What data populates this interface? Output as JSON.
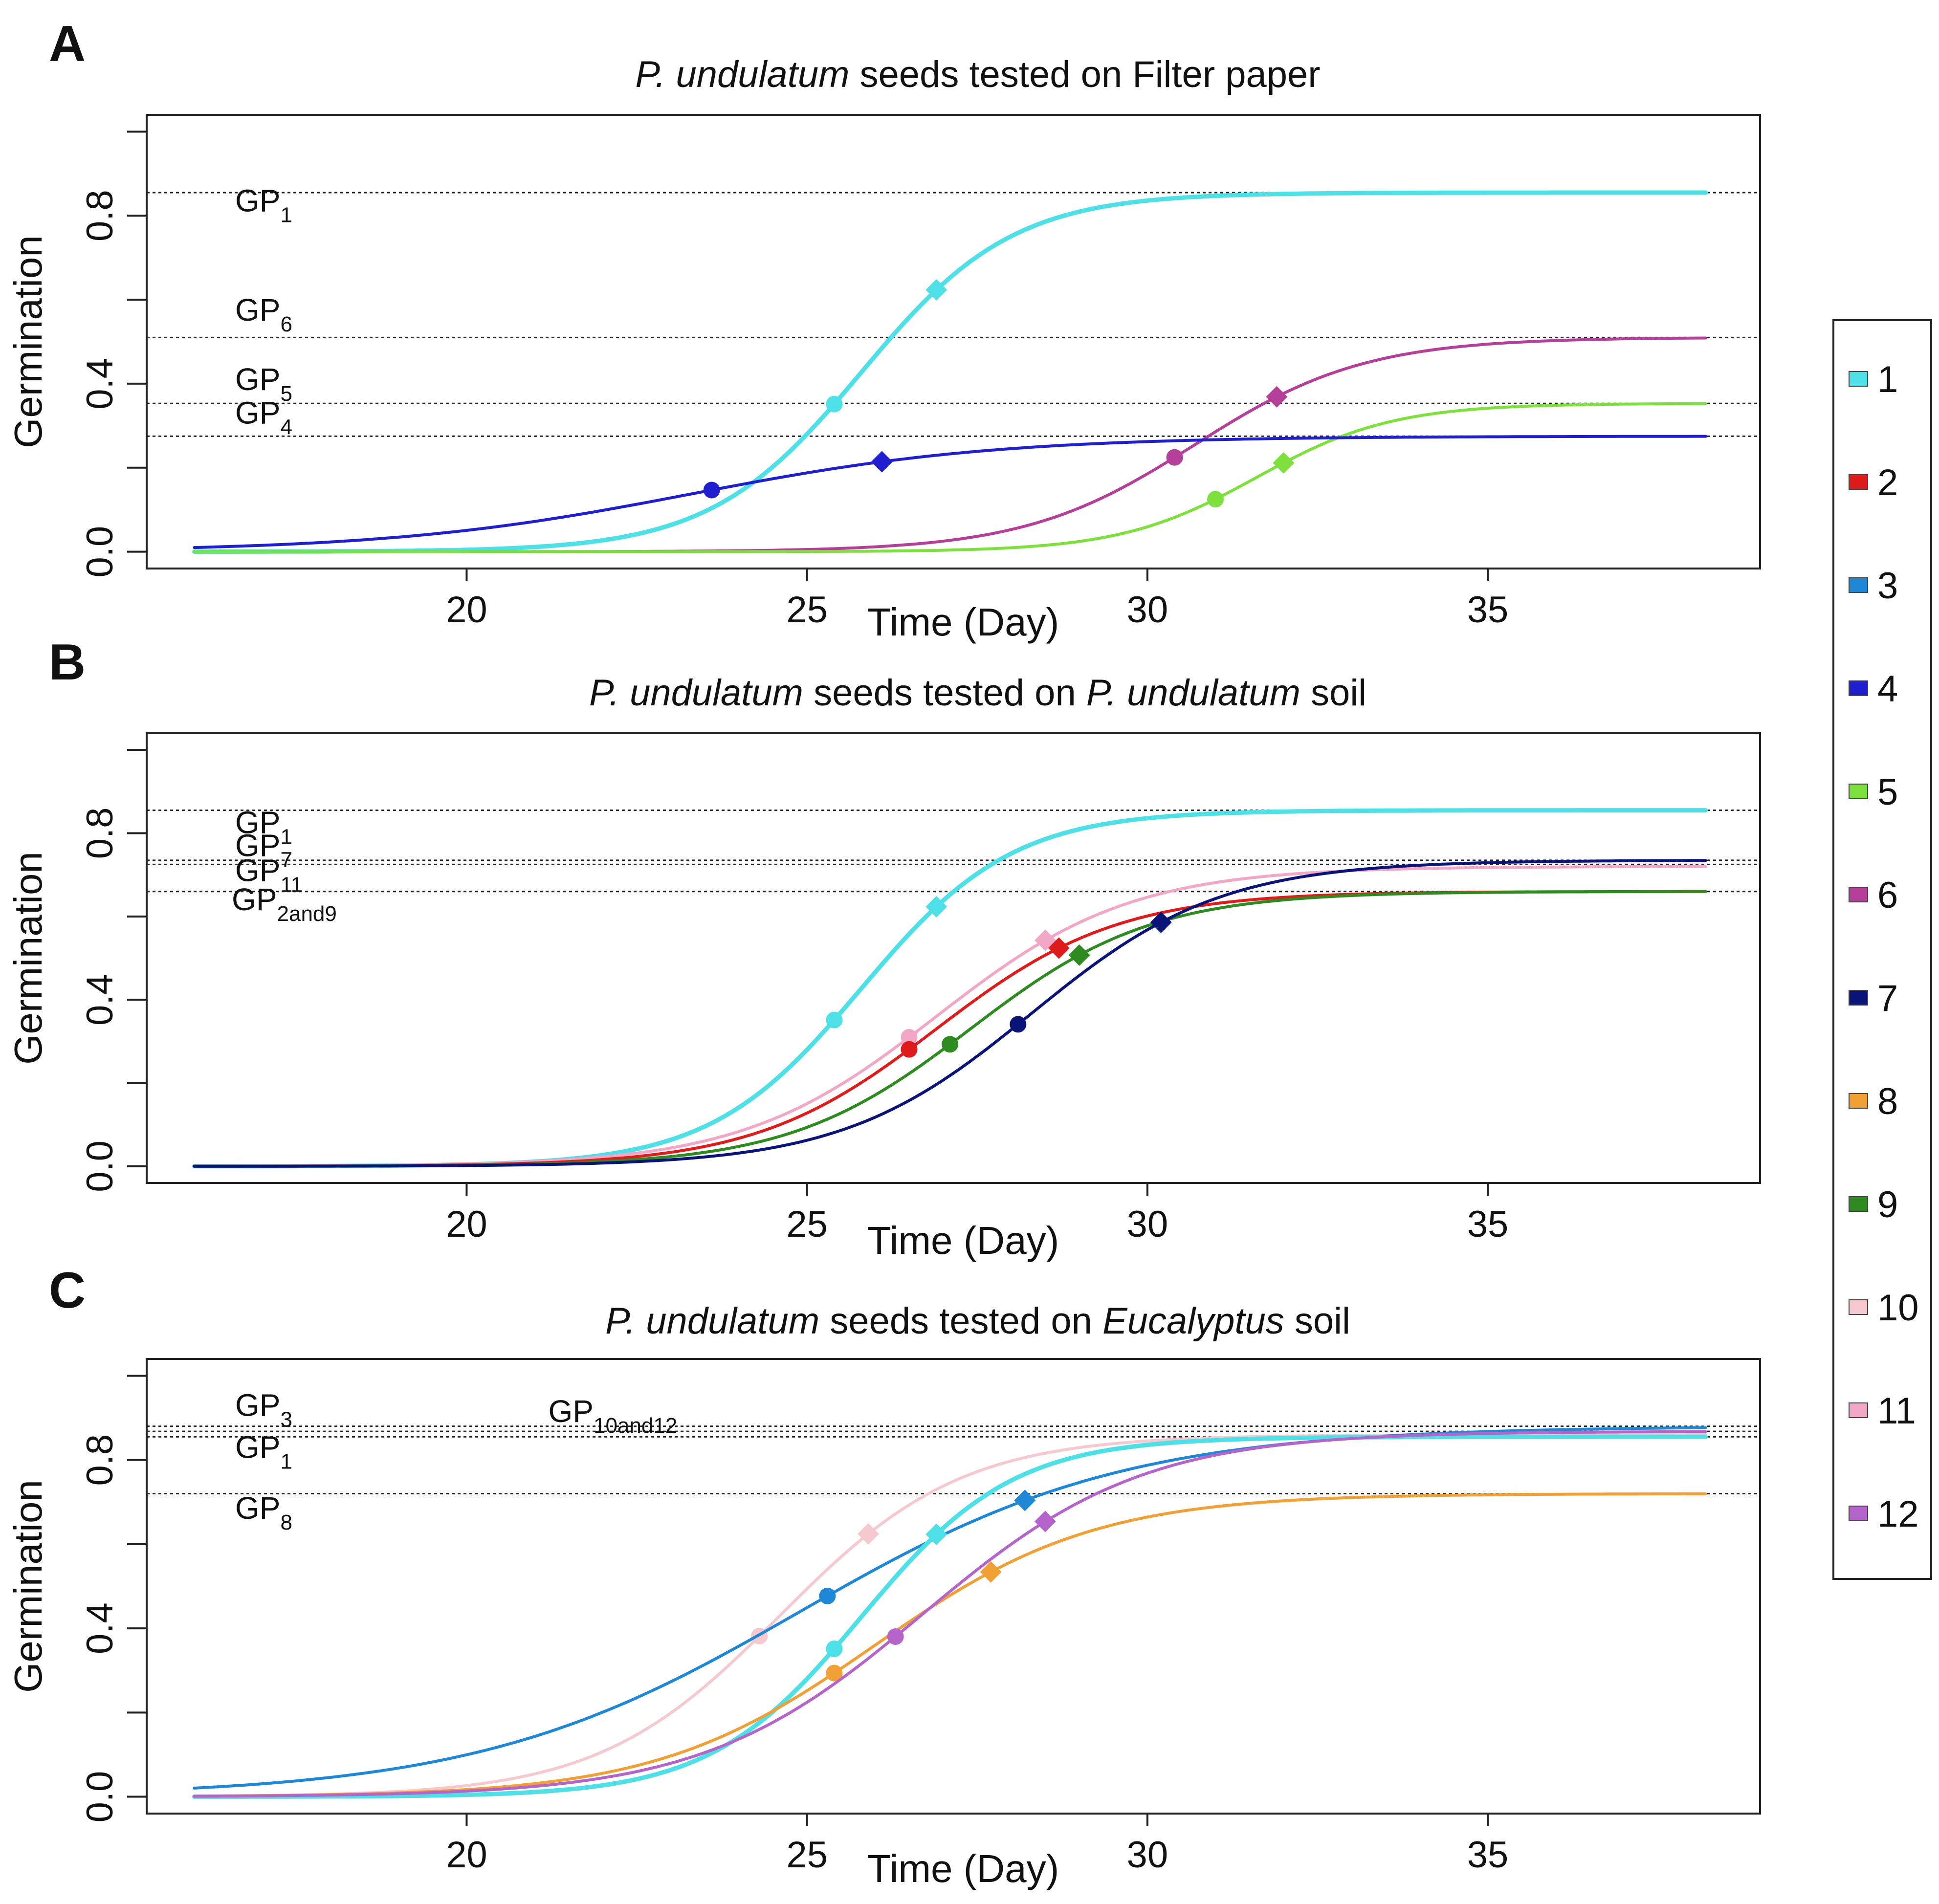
{
  "chart_data": [
    {
      "panel": "A",
      "type": "line",
      "title_parts": [
        {
          "text": "P. undulatum",
          "italic": true
        },
        {
          "text": " seeds tested on Filter paper",
          "italic": false
        }
      ],
      "xlabel": "Time (Day)",
      "ylabel": "Germination",
      "xlim": [
        15.3,
        39.0
      ],
      "ylim": [
        -0.04,
        1.04
      ],
      "xticks": [
        20,
        25,
        30,
        35
      ],
      "yticks": [
        0.0,
        0.4,
        0.8
      ],
      "yminor": [
        0.2,
        0.6,
        1.0
      ],
      "gp_lines": [
        {
          "value": 0.855,
          "label": "GP",
          "sub": "1",
          "lx": 16.6,
          "ly": 0.81
        },
        {
          "value": 0.51,
          "label": "GP",
          "sub": "6",
          "lx": 16.6,
          "ly": 0.55
        },
        {
          "value": 0.353,
          "label": "GP",
          "sub": "5",
          "lx": 16.6,
          "ly": 0.385
        },
        {
          "value": 0.275,
          "label": "GP",
          "sub": "4",
          "lx": 16.6,
          "ly": 0.305
        }
      ],
      "series": [
        {
          "name": "1",
          "color": "#4de0e6",
          "stroke": 9,
          "max": 0.855,
          "t50": 25.8,
          "k": 0.9,
          "points": [
            25.4,
            26.9
          ]
        },
        {
          "name": "6",
          "color": "#b5409a",
          "stroke": 6,
          "max": 0.51,
          "t50": 30.7,
          "k": 0.8,
          "points": [
            30.4,
            31.9
          ]
        },
        {
          "name": "5",
          "color": "#7de03c",
          "stroke": 6,
          "max": 0.353,
          "t50": 31.6,
          "k": 1.0,
          "points": [
            31.0,
            32.0
          ]
        },
        {
          "name": "4",
          "color": "#1f1fd0",
          "stroke": 6,
          "max": 0.275,
          "t50": 23.3,
          "k": 0.45,
          "points": [
            23.6,
            26.1
          ]
        }
      ]
    },
    {
      "panel": "B",
      "type": "line",
      "title_parts": [
        {
          "text": "P. undulatum",
          "italic": true
        },
        {
          "text": " seeds tested on ",
          "italic": false
        },
        {
          "text": "P. undulatum",
          "italic": true
        },
        {
          "text": " soil",
          "italic": false
        }
      ],
      "xlabel": "Time (Day)",
      "ylabel": "Germination",
      "xlim": [
        15.3,
        39.0
      ],
      "ylim": [
        -0.04,
        1.04
      ],
      "xticks": [
        20,
        25,
        30,
        35
      ],
      "yticks": [
        0.0,
        0.4,
        0.8
      ],
      "yminor": [
        0.2,
        0.6,
        1.0
      ],
      "gp_lines": [
        {
          "value": 0.855,
          "label": "GP",
          "sub": "1",
          "lx": 16.6,
          "ly": 0.8
        },
        {
          "value": 0.735,
          "label": "GP",
          "sub": "7",
          "lx": 16.6,
          "ly": 0.745
        },
        {
          "value": 0.725,
          "label": "GP",
          "sub": "11",
          "lx": 16.6,
          "ly": 0.685
        },
        {
          "value": 0.66,
          "label": "GP",
          "sub": "2and9",
          "lx": 16.55,
          "ly": 0.615
        }
      ],
      "series": [
        {
          "name": "1",
          "color": "#4de0e6",
          "stroke": 9,
          "max": 0.855,
          "t50": 25.8,
          "k": 0.9,
          "points": [
            25.4,
            26.9
          ]
        },
        {
          "name": "11",
          "color": "#f2a7c6",
          "stroke": 6,
          "max": 0.72,
          "t50": 26.9,
          "k": 0.7,
          "points": [
            26.5,
            28.5
          ]
        },
        {
          "name": "2",
          "color": "#e01b1b",
          "stroke": 6,
          "max": 0.66,
          "t50": 26.9,
          "k": 0.75,
          "points": [
            26.5,
            28.7
          ]
        },
        {
          "name": "9",
          "color": "#2e8b1f",
          "stroke": 6,
          "max": 0.66,
          "t50": 27.4,
          "k": 0.75,
          "points": [
            27.1,
            29.0
          ]
        },
        {
          "name": "7",
          "color": "#0a1478",
          "stroke": 6,
          "max": 0.735,
          "t50": 28.3,
          "k": 0.72,
          "points": [
            28.1,
            30.2
          ]
        }
      ]
    },
    {
      "panel": "C",
      "type": "line",
      "title_parts": [
        {
          "text": "P. undulatum",
          "italic": true
        },
        {
          "text": " seeds tested on ",
          "italic": false
        },
        {
          "text": "Eucalyptus",
          "italic": true
        },
        {
          "text": " soil",
          "italic": false
        }
      ],
      "xlabel": "Time (Day)",
      "ylabel": "Germination",
      "xlim": [
        15.3,
        39.0
      ],
      "ylim": [
        -0.04,
        1.04
      ],
      "xticks": [
        20,
        25,
        30,
        35
      ],
      "yticks": [
        0.0,
        0.4,
        0.8
      ],
      "yminor": [
        0.2,
        0.6,
        1.0
      ],
      "gp_lines": [
        {
          "value": 0.88,
          "label": "GP",
          "sub": "3",
          "lx": 16.6,
          "ly": 0.905
        },
        {
          "value": 0.868,
          "label": "GP",
          "sub": "10and12",
          "lx": 21.2,
          "ly": 0.89
        },
        {
          "value": 0.855,
          "label": "GP",
          "sub": "1",
          "lx": 16.6,
          "ly": 0.805
        },
        {
          "value": 0.72,
          "label": "GP",
          "sub": "8",
          "lx": 16.6,
          "ly": 0.66
        }
      ],
      "series": [
        {
          "name": "10",
          "color": "#f5c9cf",
          "stroke": 6,
          "max": 0.86,
          "t50": 24.6,
          "k": 0.75,
          "points": [
            24.3,
            25.9
          ]
        },
        {
          "name": "3",
          "color": "#1f88d6",
          "stroke": 6,
          "max": 0.88,
          "t50": 24.9,
          "k": 0.42,
          "points": [
            25.3,
            28.2
          ]
        },
        {
          "name": "1",
          "color": "#4de0e6",
          "stroke": 9,
          "max": 0.855,
          "t50": 25.8,
          "k": 0.9,
          "points": [
            25.4,
            26.9
          ]
        },
        {
          "name": "8",
          "color": "#f0a035",
          "stroke": 6,
          "max": 0.72,
          "t50": 26.0,
          "k": 0.62,
          "points": [
            25.4,
            27.7
          ]
        },
        {
          "name": "12",
          "color": "#b565c9",
          "stroke": 6,
          "max": 0.868,
          "t50": 26.7,
          "k": 0.62,
          "points": [
            26.3,
            28.5
          ]
        }
      ]
    }
  ],
  "legend": [
    {
      "label": "1",
      "color": "#4de0e6"
    },
    {
      "label": "2",
      "color": "#e01b1b"
    },
    {
      "label": "3",
      "color": "#1f88d6"
    },
    {
      "label": "4",
      "color": "#1f1fd0"
    },
    {
      "label": "5",
      "color": "#7de03c"
    },
    {
      "label": "6",
      "color": "#b5409a"
    },
    {
      "label": "7",
      "color": "#0a1478"
    },
    {
      "label": "8",
      "color": "#f0a035"
    },
    {
      "label": "9",
      "color": "#2e8b1f"
    },
    {
      "label": "10",
      "color": "#f5c9cf"
    },
    {
      "label": "11",
      "color": "#f2a7c6"
    },
    {
      "label": "12",
      "color": "#b565c9"
    }
  ]
}
